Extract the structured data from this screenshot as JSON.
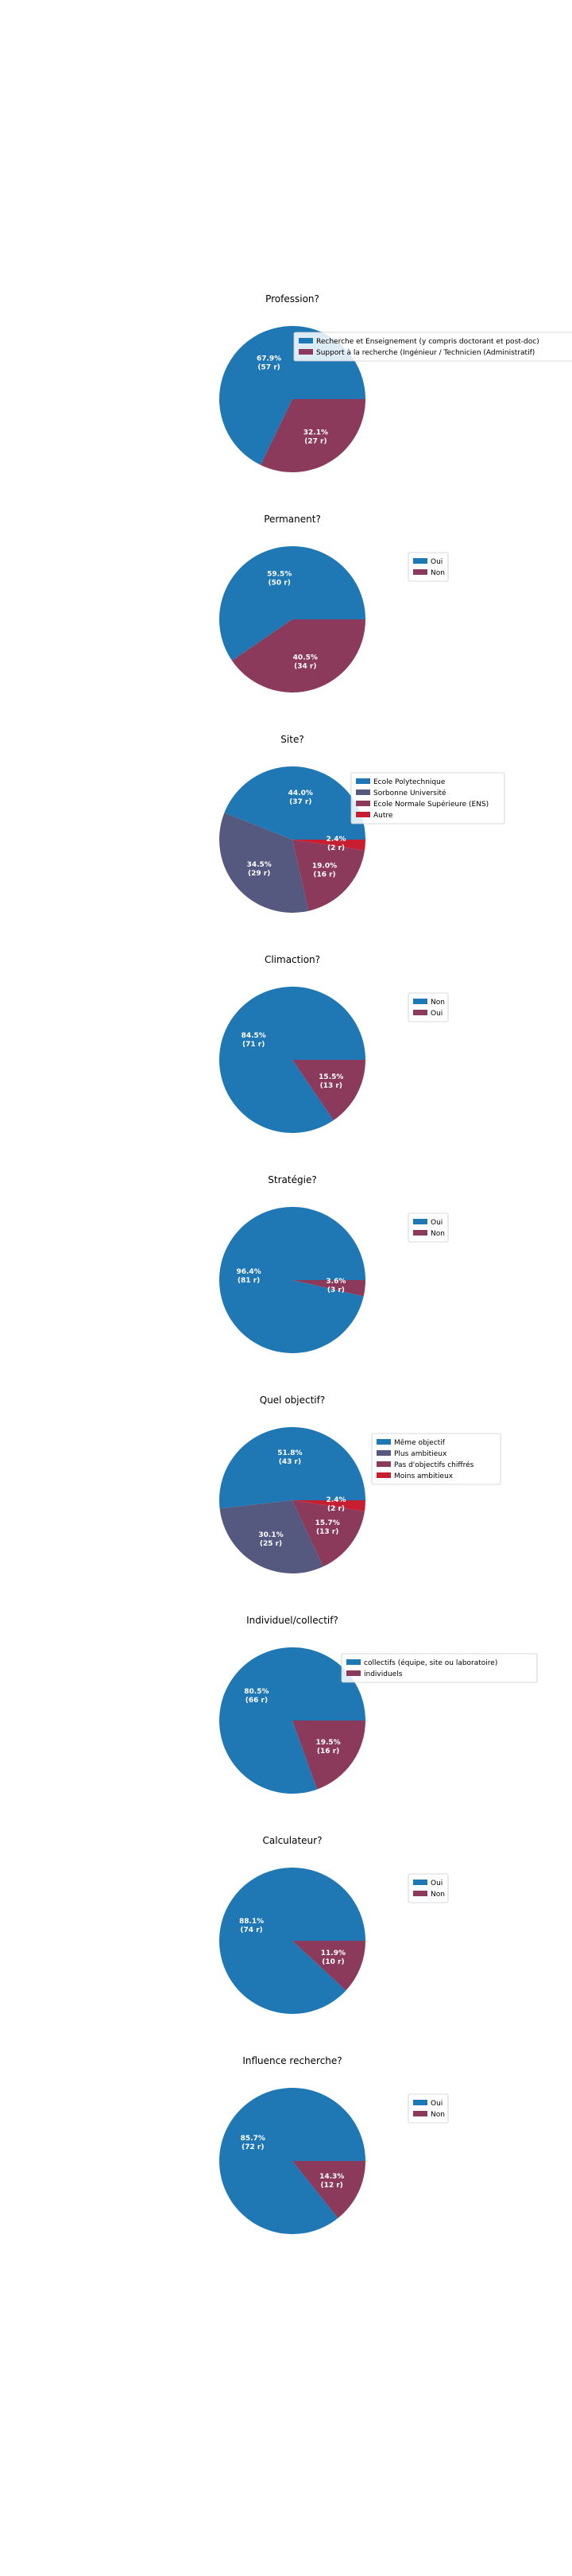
{
  "colors": {
    "blue": "#1f77b4",
    "slate": "#55587f",
    "rose": "#8b3a5c",
    "red": "#c81e32"
  },
  "chart_data": [
    {
      "type": "pie",
      "title": "Profession?",
      "labels": [
        "Recherche et Enseignement (y compris doctorant et post-doc)",
        "Support à la recherche (Ingénieur / Technicien (Administratif)"
      ],
      "values": [
        57,
        27
      ],
      "percent_labels": [
        "67.9%",
        "32.1%"
      ],
      "count_labels": [
        "(57 r)",
        "(27 r)"
      ],
      "colors": [
        "#1f77b4",
        "#8b3a5c"
      ],
      "legend": "upper right"
    },
    {
      "type": "pie",
      "title": "Permanent?",
      "labels": [
        "Oui",
        "Non"
      ],
      "values": [
        50,
        34
      ],
      "percent_labels": [
        "59.5%",
        "40.5%"
      ],
      "count_labels": [
        "(50 r)",
        "(34 r)"
      ],
      "colors": [
        "#1f77b4",
        "#8b3a5c"
      ],
      "legend": "upper right"
    },
    {
      "type": "pie",
      "title": "Site?",
      "labels": [
        "Ecole Polytechnique",
        "Sorbonne Université",
        "Ecole Normale Supérieure (ENS)",
        "Autre"
      ],
      "values": [
        37,
        29,
        16,
        2
      ],
      "percent_labels": [
        "44.0%",
        "34.5%",
        "19.0%",
        "2.4%"
      ],
      "count_labels": [
        "(37 r)",
        "(29 r)",
        "(16 r)",
        "(2 r)"
      ],
      "colors": [
        "#1f77b4",
        "#55587f",
        "#8b3a5c",
        "#c81e32"
      ],
      "legend": "upper right"
    },
    {
      "type": "pie",
      "title": "Climaction?",
      "labels": [
        "Non",
        "Oui"
      ],
      "values": [
        71,
        13
      ],
      "percent_labels": [
        "84.5%",
        "15.5%"
      ],
      "count_labels": [
        "(71 r)",
        "(13 r)"
      ],
      "colors": [
        "#1f77b4",
        "#8b3a5c"
      ],
      "legend": "upper right"
    },
    {
      "type": "pie",
      "title": "Stratégie?",
      "labels": [
        "Oui",
        "Non"
      ],
      "values": [
        81,
        3
      ],
      "percent_labels": [
        "96.4%",
        "3.6%"
      ],
      "count_labels": [
        "(81 r)",
        "(3 r)"
      ],
      "colors": [
        "#1f77b4",
        "#8b3a5c"
      ],
      "legend": "upper right"
    },
    {
      "type": "pie",
      "title": "Quel objectif?",
      "labels": [
        "Même objectif",
        "Plus ambitieux",
        "Pas d'objectifs chiffrés",
        "Moins ambitieux"
      ],
      "values": [
        43,
        25,
        13,
        2
      ],
      "percent_labels": [
        "51.8%",
        "30.1%",
        "15.7%",
        "2.4%"
      ],
      "count_labels": [
        "(43 r)",
        "(25 r)",
        "(13 r)",
        "(2 r)"
      ],
      "colors": [
        "#1f77b4",
        "#55587f",
        "#8b3a5c",
        "#c81e32"
      ],
      "legend": "upper right"
    },
    {
      "type": "pie",
      "title": "Individuel/collectif?",
      "labels": [
        "collectifs (équipe, site ou laboratoire)",
        "individuels"
      ],
      "values": [
        66,
        16
      ],
      "percent_labels": [
        "80.5%",
        "19.5%"
      ],
      "count_labels": [
        "(66 r)",
        "(16 r)"
      ],
      "colors": [
        "#1f77b4",
        "#8b3a5c"
      ],
      "legend": "upper right"
    },
    {
      "type": "pie",
      "title": "Calculateur?",
      "labels": [
        "Oui",
        "Non"
      ],
      "values": [
        74,
        10
      ],
      "percent_labels": [
        "88.1%",
        "11.9%"
      ],
      "count_labels": [
        "(74 r)",
        "(10 r)"
      ],
      "colors": [
        "#1f77b4",
        "#8b3a5c"
      ],
      "legend": "upper right"
    },
    {
      "type": "pie",
      "title": "Influence recherche?",
      "labels": [
        "Oui",
        "Non"
      ],
      "values": [
        72,
        12
      ],
      "percent_labels": [
        "85.7%",
        "14.3%"
      ],
      "count_labels": [
        "(72 r)",
        "(12 r)"
      ],
      "colors": [
        "#1f77b4",
        "#8b3a5c"
      ],
      "legend": "upper right"
    }
  ]
}
